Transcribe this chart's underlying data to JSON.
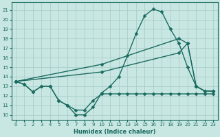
{
  "xlabel": "Humidex (Indice chaleur)",
  "x_ticks": [
    0,
    1,
    2,
    3,
    4,
    5,
    6,
    7,
    8,
    9,
    10,
    11,
    12,
    13,
    14,
    15,
    16,
    17,
    18,
    19,
    20,
    21,
    22,
    23
  ],
  "y_ticks": [
    10,
    11,
    12,
    13,
    14,
    15,
    16,
    17,
    18,
    19,
    20,
    21
  ],
  "xlim": [
    -0.5,
    23.5
  ],
  "ylim": [
    9.5,
    21.8
  ],
  "bg_color": "#c8e6e2",
  "grid_color": "#aacfca",
  "line_color": "#1a6b60",
  "series": [
    {
      "x": [
        0,
        1,
        2,
        3,
        4,
        5,
        6,
        7,
        8,
        9,
        10,
        11,
        12,
        13,
        14,
        15,
        16,
        17,
        18,
        19,
        20,
        21,
        22,
        23
      ],
      "y": [
        13.5,
        13.2,
        12.4,
        13.0,
        13.0,
        11.5,
        11.0,
        10.0,
        10.0,
        10.8,
        12.3,
        13.0,
        14.0,
        16.2,
        18.5,
        20.4,
        21.1,
        20.8,
        19.0,
        17.5,
        15.0,
        13.0,
        12.5,
        12.5
      ],
      "marker": "D",
      "markersize": 2.5,
      "linewidth": 1.0
    },
    {
      "x": [
        0,
        1,
        2,
        3,
        4,
        5,
        6,
        7,
        8,
        9,
        10,
        11,
        12,
        13,
        14,
        15,
        16,
        17,
        18,
        19,
        20,
        21,
        22,
        23
      ],
      "y": [
        13.5,
        13.2,
        12.4,
        13.0,
        13.0,
        11.5,
        11.0,
        10.5,
        10.5,
        11.5,
        12.2,
        12.2,
        12.2,
        12.2,
        12.2,
        12.2,
        12.2,
        12.2,
        12.2,
        12.2,
        12.2,
        12.2,
        12.2,
        12.2
      ],
      "marker": "D",
      "markersize": 2.5,
      "linewidth": 1.0
    },
    {
      "x": [
        0,
        10,
        19,
        20,
        21,
        22,
        23
      ],
      "y": [
        13.5,
        15.3,
        18.0,
        17.5,
        13.0,
        12.5,
        12.5
      ],
      "marker": "D",
      "markersize": 2.5,
      "linewidth": 1.0
    },
    {
      "x": [
        0,
        10,
        19,
        20,
        21,
        22,
        23
      ],
      "y": [
        13.5,
        14.5,
        16.5,
        17.5,
        13.0,
        12.5,
        12.5
      ],
      "marker": "D",
      "markersize": 2.5,
      "linewidth": 1.0
    }
  ]
}
